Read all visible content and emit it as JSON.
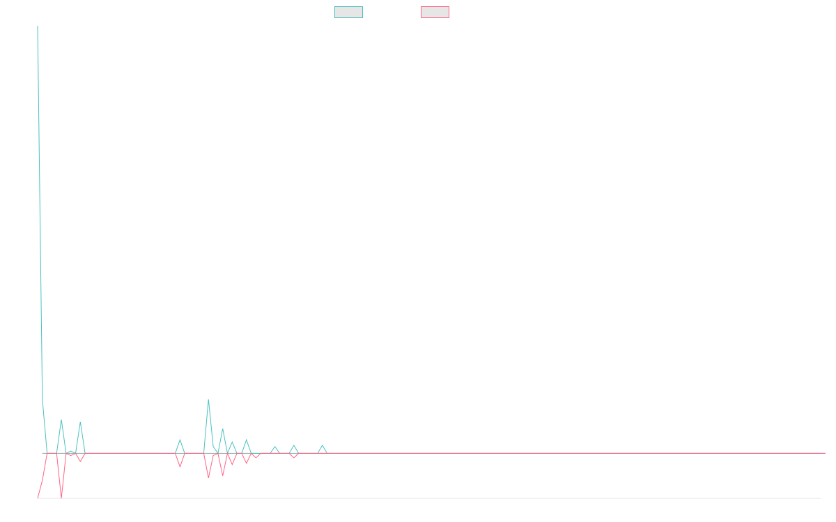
{
  "chart_data": {
    "type": "line",
    "title": "",
    "xlabel": "",
    "ylabel": "",
    "legend_position": "top-center",
    "grid": false,
    "x_range": [
      0,
      165
    ],
    "ylim": [
      -100,
      950
    ],
    "series": [
      {
        "color": "#4bc0c0",
        "fill": "#e6e6e6",
        "values": [
          950,
          120,
          0,
          0,
          0,
          75,
          0,
          5,
          0,
          70,
          0,
          0,
          0,
          0,
          0,
          0,
          0,
          0,
          0,
          0,
          0,
          0,
          0,
          0,
          0,
          0,
          0,
          0,
          0,
          0,
          30,
          0,
          0,
          0,
          0,
          0,
          120,
          15,
          0,
          55,
          0,
          25,
          0,
          0,
          30,
          0,
          0,
          0,
          0,
          0,
          15,
          0,
          0,
          0,
          18,
          0,
          0,
          0,
          0,
          0,
          18,
          0,
          0,
          0,
          0,
          0,
          0,
          0,
          0,
          0,
          0,
          0,
          0,
          0,
          0,
          0,
          0,
          0,
          0,
          0,
          0,
          0,
          0,
          0,
          0,
          0,
          0,
          0,
          0,
          0,
          0,
          0,
          0,
          0,
          0,
          0,
          0,
          0,
          0,
          0,
          0,
          0,
          0,
          0,
          0,
          0,
          0,
          0,
          0,
          0,
          0,
          0,
          0,
          0,
          0,
          0,
          0,
          0,
          0,
          0,
          0,
          0,
          0,
          0,
          0,
          0,
          0,
          0,
          0,
          0,
          0,
          0,
          0,
          0,
          0,
          0,
          0,
          0,
          0,
          0,
          0,
          0,
          0,
          0,
          0,
          0,
          0,
          0,
          0,
          0,
          0,
          0,
          0,
          0,
          0,
          0,
          0,
          0,
          0,
          0,
          0,
          0,
          0,
          0,
          0,
          0,
          0
        ]
      },
      {
        "color": "#ff6384",
        "fill": "#e6e6e6",
        "values": [
          -100,
          -60,
          0,
          0,
          0,
          -100,
          0,
          -5,
          0,
          -18,
          0,
          0,
          0,
          0,
          0,
          0,
          0,
          0,
          0,
          0,
          0,
          0,
          0,
          0,
          0,
          0,
          0,
          0,
          0,
          0,
          -30,
          0,
          0,
          0,
          0,
          0,
          -55,
          -5,
          0,
          -50,
          0,
          -25,
          0,
          0,
          -22,
          0,
          -10,
          0,
          0,
          0,
          0,
          0,
          0,
          0,
          -10,
          0,
          0,
          0,
          0,
          0,
          0,
          0,
          0,
          0,
          0,
          0,
          0,
          0,
          0,
          0,
          0,
          0,
          0,
          0,
          0,
          0,
          0,
          0,
          0,
          0,
          0,
          0,
          0,
          0,
          0,
          0,
          0,
          0,
          0,
          0,
          0,
          0,
          0,
          0,
          0,
          0,
          0,
          0,
          0,
          0,
          0,
          0,
          0,
          0,
          0,
          0,
          0,
          0,
          0,
          0,
          0,
          0,
          0,
          0,
          0,
          0,
          0,
          0,
          0,
          0,
          0,
          0,
          0,
          0,
          0,
          0,
          0,
          0,
          0,
          0,
          0,
          0,
          0,
          0,
          0,
          0,
          0,
          0,
          0,
          0,
          0,
          0,
          0,
          0,
          0,
          0,
          0,
          0,
          0,
          0,
          0,
          0,
          0,
          0,
          0,
          0,
          0,
          0,
          0,
          0,
          0,
          0,
          0,
          0,
          0,
          0,
          0
        ]
      }
    ]
  }
}
